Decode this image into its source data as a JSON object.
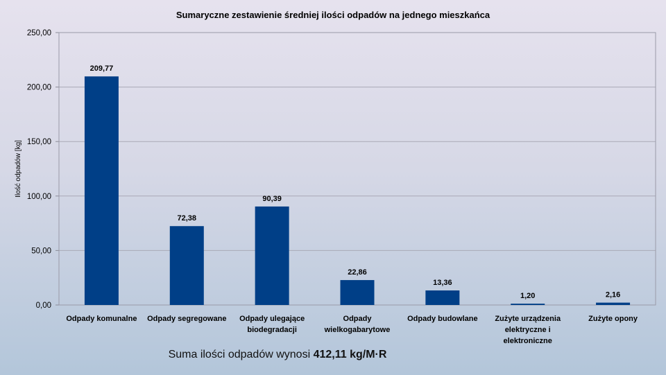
{
  "chart_data": {
    "type": "bar",
    "title": "Sumaryczne zestawienie średniej ilości odpadów na jednego mieszkańca",
    "ylabel": "Ilość odpadów [kg]",
    "xlabel": "",
    "ylim": [
      0,
      250
    ],
    "yticks": [
      "0,00",
      "50,00",
      "100,00",
      "150,00",
      "200,00",
      "250,00"
    ],
    "categories": [
      [
        "Odpady komunalne"
      ],
      [
        "Odpady segregowane"
      ],
      [
        "Odpady ulegające",
        "biodegradacji"
      ],
      [
        "Odpady",
        "wielkogabarytowe"
      ],
      [
        "Odpady budowlane"
      ],
      [
        "Zużyte urządzenia",
        "elektryczne i",
        "elektroniczne"
      ],
      [
        "Zużyte opony"
      ]
    ],
    "values": [
      209.77,
      72.38,
      90.39,
      22.86,
      13.36,
      1.2,
      2.16
    ],
    "value_labels": [
      "209,77",
      "72,38",
      "90,39",
      "22,86",
      "13,36",
      "1,20",
      "2,16"
    ],
    "bar_color": "#003f87",
    "grid": true,
    "legend": "none"
  },
  "footer": {
    "prefix": "Suma ilości odpadów wynosi ",
    "total": "412,11 kg/M·R"
  }
}
